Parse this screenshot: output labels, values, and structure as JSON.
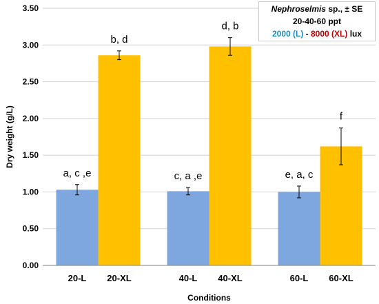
{
  "chart_data": {
    "type": "bar",
    "categories": [
      "20-L",
      "20-XL",
      "40-L",
      "40-XL",
      "60-L",
      "60-XL"
    ],
    "values": [
      1.03,
      2.86,
      1.01,
      2.98,
      1.0,
      1.62
    ],
    "errors": [
      0.07,
      0.06,
      0.05,
      0.12,
      0.08,
      0.25
    ],
    "significance": [
      "a, c ,e",
      "b, d",
      "c, a ,e",
      "d, b",
      "e, a, c",
      "f"
    ],
    "bar_colors": [
      "#7da7de",
      "#ffc000",
      "#7da7de",
      "#ffc000",
      "#7da7de",
      "#ffc000"
    ],
    "xlabel": "Conditions",
    "ylabel": "Dry weight (g/L)",
    "ylim": [
      0,
      3.5
    ],
    "yticks": [
      "0.00",
      "0.50",
      "1.00",
      "1.50",
      "2.00",
      "2.50",
      "3.00",
      "3.50"
    ],
    "grid": true,
    "legend_placement": "top-right",
    "legend": {
      "species": "Nephroselmis",
      "species_suffix": " sp., ± SE",
      "line2": "20-40-60 ppt",
      "low": "2000 (L)",
      "sep": " - ",
      "high": "8000 (XL)",
      "unit": " lux"
    }
  }
}
